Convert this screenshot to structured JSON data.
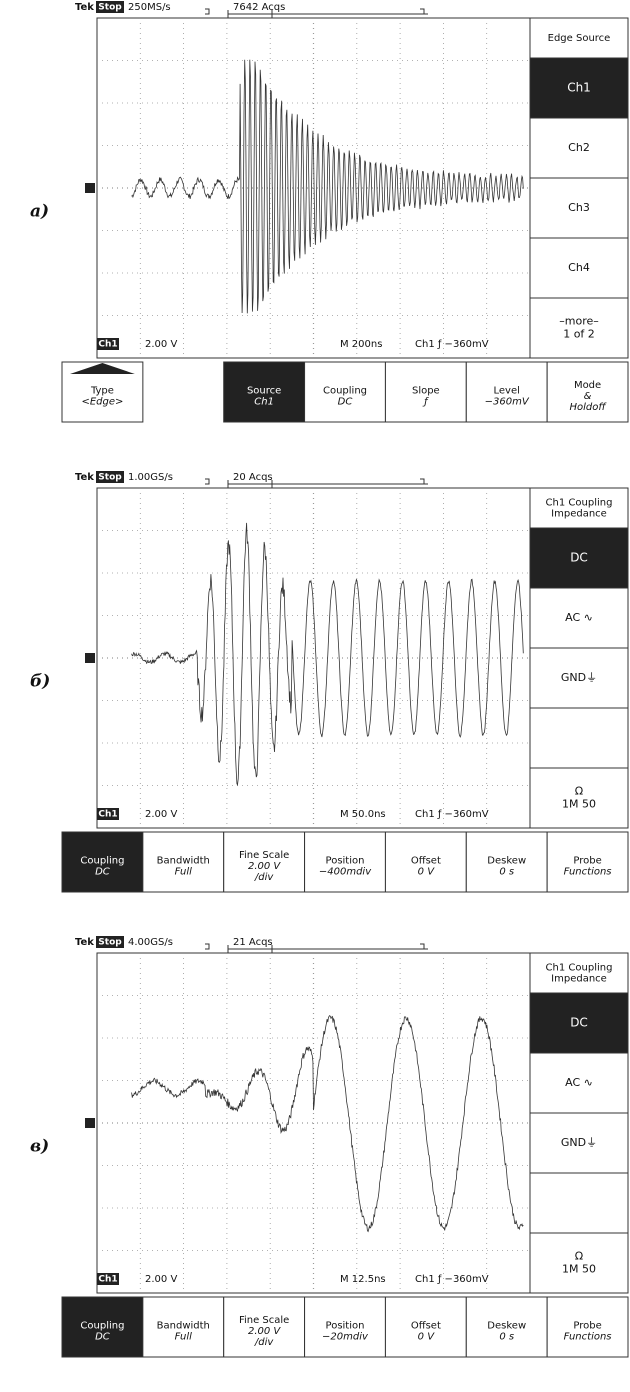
{
  "panels": [
    {
      "label": "а)",
      "header": {
        "brand": "Tek",
        "state": "Stop",
        "rate": "250MS/s",
        "acqs": "7642 Acqs"
      },
      "status": {
        "channel": "Ch1",
        "scale": "2.00 V",
        "timebase": "M 200ns",
        "trigger": "Ch1 ƒ  −360mV"
      },
      "side_menu": {
        "title": [
          "Edge Source"
        ],
        "items": [
          {
            "lines": [
              "Ch1"
            ],
            "selected": true
          },
          {
            "lines": [
              "Ch2"
            ]
          },
          {
            "lines": [
              "Ch3"
            ]
          },
          {
            "lines": [
              "Ch4"
            ]
          },
          {
            "lines": [
              "–more–",
              "1 of 2"
            ]
          }
        ]
      },
      "bottom_menu": [
        {
          "lines": [
            "Type",
            "<Edge>"
          ]
        },
        {
          "lines": [
            "Source",
            "Ch1"
          ],
          "selected": true
        },
        {
          "lines": [
            "Coupling",
            "DC"
          ]
        },
        {
          "lines": [
            "Slope",
            "ƒ"
          ]
        },
        {
          "lines": [
            "Level",
            "−360mV"
          ]
        },
        {
          "lines": [
            "Mode",
            "&",
            "Holdoff"
          ]
        }
      ]
    },
    {
      "label": "б)",
      "header": {
        "brand": "Tek",
        "state": "Stop",
        "rate": "1.00GS/s",
        "acqs": "20 Acqs"
      },
      "status": {
        "channel": "Ch1",
        "scale": "2.00 V",
        "timebase": "M 50.0ns",
        "trigger": "Ch1 ƒ  −360mV"
      },
      "side_menu": {
        "title": [
          "Ch1 Coupling",
          "Impedance"
        ],
        "items": [
          {
            "lines": [
              "DC"
            ],
            "selected": true
          },
          {
            "lines": [
              "AC ∿"
            ]
          },
          {
            "lines": [
              "GND⏚"
            ]
          },
          {
            "lines": [
              "Ω",
              "1M  50"
            ]
          }
        ]
      },
      "bottom_menu": [
        {
          "lines": [
            "Coupling",
            "DC"
          ],
          "selected": true
        },
        {
          "lines": [
            "Bandwidth",
            "Full"
          ]
        },
        {
          "lines": [
            "Fine Scale",
            "2.00 V",
            "/div"
          ]
        },
        {
          "lines": [
            "Position",
            "−400mdiv"
          ]
        },
        {
          "lines": [
            "Offset",
            "0 V"
          ]
        },
        {
          "lines": [
            "Deskew",
            "0 s"
          ]
        },
        {
          "lines": [
            "Probe",
            "Functions"
          ]
        }
      ]
    },
    {
      "label": "в)",
      "header": {
        "brand": "Tek",
        "state": "Stop",
        "rate": "4.00GS/s",
        "acqs": "21 Acqs"
      },
      "status": {
        "channel": "Ch1",
        "scale": "2.00 V",
        "timebase": "M 12.5ns",
        "trigger": "Ch1 ƒ  −360mV"
      },
      "side_menu": {
        "title": [
          "Ch1 Coupling",
          "Impedance"
        ],
        "items": [
          {
            "lines": [
              "DC"
            ],
            "selected": true
          },
          {
            "lines": [
              "AC ∿"
            ]
          },
          {
            "lines": [
              "GND⏚"
            ]
          },
          {
            "lines": [
              "Ω",
              "1M  50"
            ]
          }
        ]
      },
      "bottom_menu": [
        {
          "lines": [
            "Coupling",
            "DC"
          ],
          "selected": true
        },
        {
          "lines": [
            "Bandwidth",
            "Full"
          ]
        },
        {
          "lines": [
            "Fine Scale",
            "2.00 V",
            "/div"
          ]
        },
        {
          "lines": [
            "Position",
            "−20mdiv"
          ]
        },
        {
          "lines": [
            "Offset",
            "0 V"
          ]
        },
        {
          "lines": [
            "Deskew",
            "0 s"
          ]
        },
        {
          "lines": [
            "Probe",
            "Functions"
          ]
        }
      ]
    }
  ]
}
